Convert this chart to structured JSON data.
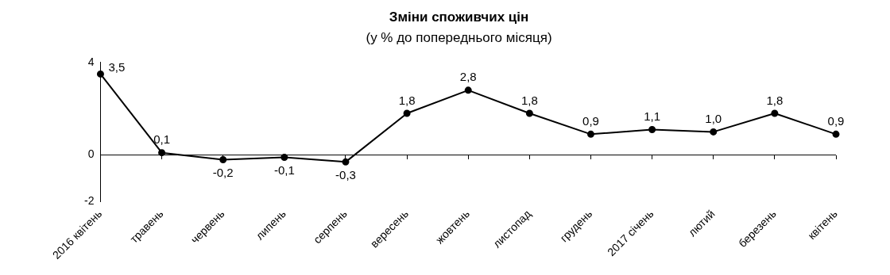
{
  "chart_data": {
    "type": "line",
    "title": "Зміни споживчих цін",
    "subtitle": "(у % до попереднього місяця)",
    "categories": [
      "2016 квітень",
      "травень",
      "червень",
      "липень",
      "серпень",
      "вересень",
      "жовтень",
      "листопад",
      "грудень",
      "2017 січень",
      "лютий",
      "березень",
      "квітень"
    ],
    "values": [
      3.5,
      0.1,
      -0.2,
      -0.1,
      -0.3,
      1.8,
      2.8,
      1.8,
      0.9,
      1.1,
      1.0,
      1.8,
      0.9
    ],
    "value_labels": [
      "3,5",
      "0,1",
      "-0,2",
      "-0,1",
      "-0,3",
      "1,8",
      "2,8",
      "1,8",
      "0,9",
      "1,1",
      "1,0",
      "1,8",
      "0,9"
    ],
    "color": "#000000",
    "marker": "circle",
    "line_style": "solid",
    "ylim": [
      -2,
      4
    ],
    "yticks": [
      -2,
      0,
      4
    ],
    "grid": false,
    "ref_lines": [
      {
        "axis": "y",
        "value": 0,
        "color": "#000000"
      }
    ],
    "legend": false
  }
}
